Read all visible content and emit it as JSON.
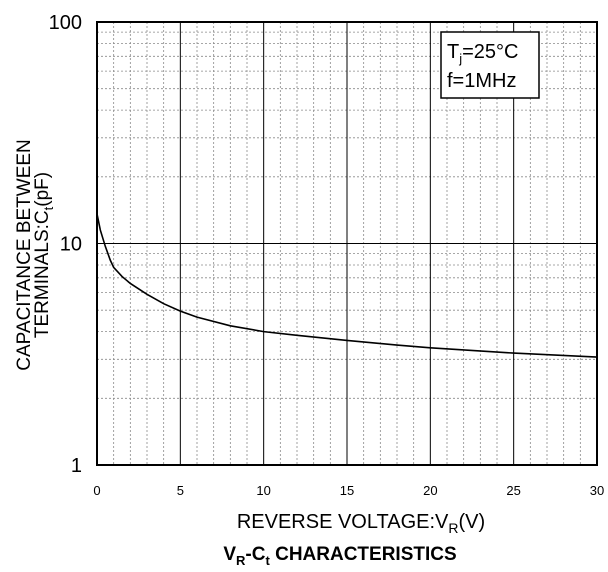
{
  "chart_data": {
    "type": "line",
    "title": "VR-Ct CHARACTERISTICS",
    "title_parts": {
      "v": "V",
      "v_sub": "R",
      "dash": "-C",
      "c_sub": "t",
      "rest": " CHARACTERISTICS"
    },
    "xlabel": "REVERSE VOLTAGE:VR(V)",
    "xlabel_parts": {
      "main": "REVERSE VOLTAGE:V",
      "sub": "R",
      "unit": "(V)"
    },
    "ylabel": "CAPACITANCE BETWEEN TERMINALS:Ct(pF)",
    "ylabel_line1": "CAPACITANCE BETWEEN",
    "ylabel_line2_parts": {
      "main": "TERMINALS:C",
      "sub": "t",
      "unit": "(pF)"
    },
    "xlim": [
      0,
      30
    ],
    "ylim": [
      1,
      100
    ],
    "yscale": "log",
    "xticks": [
      0,
      5,
      10,
      15,
      20,
      25,
      30
    ],
    "xtick_labels": [
      "0",
      "5",
      "10",
      "15",
      "20",
      "25",
      "30"
    ],
    "yticks": [
      1,
      10,
      100
    ],
    "ytick_labels": [
      "1",
      "10",
      "100"
    ],
    "grid": true,
    "legend": {
      "position": "top-right",
      "line1_parts": {
        "t": "T",
        "sub": "j",
        "rest": "=25°C"
      },
      "line2": "f=1MHz"
    },
    "series": [
      {
        "x": [
          0,
          0.2,
          0.5,
          0.8,
          1.0,
          1.5,
          2,
          3,
          4,
          5,
          6,
          8,
          10,
          12,
          15,
          18,
          20,
          25,
          30
        ],
        "y": [
          13.6,
          11.5,
          9.7,
          8.4,
          7.8,
          7.1,
          6.6,
          5.9,
          5.35,
          4.95,
          4.65,
          4.25,
          4.0,
          3.85,
          3.65,
          3.48,
          3.38,
          3.2,
          3.07
        ]
      }
    ]
  }
}
